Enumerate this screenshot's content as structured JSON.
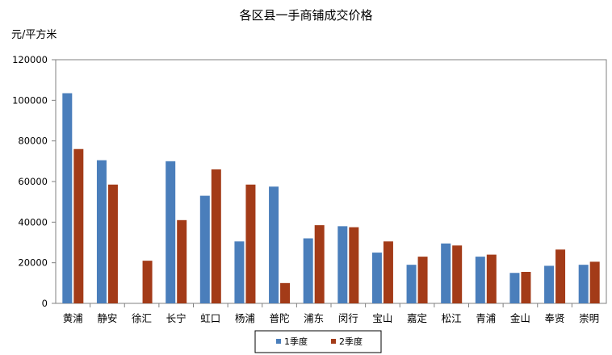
{
  "chart_data": {
    "type": "bar",
    "title": "各区县一手商铺成交价格",
    "ylabel": "元/平方米",
    "xlabel": "",
    "ylim": [
      0,
      120000
    ],
    "yticks": [
      0,
      20000,
      40000,
      60000,
      80000,
      100000,
      120000
    ],
    "grid": false,
    "legend_position": "bottom",
    "categories": [
      "黄浦",
      "静安",
      "徐汇",
      "长宁",
      "虹口",
      "杨浦",
      "普陀",
      "浦东",
      "闵行",
      "宝山",
      "嘉定",
      "松江",
      "青浦",
      "金山",
      "奉贤",
      "崇明"
    ],
    "series": [
      {
        "name": "1季度",
        "color": "#4a7ebb",
        "values": [
          103500,
          70500,
          0,
          70000,
          53000,
          30500,
          57500,
          32000,
          38000,
          25000,
          19000,
          29500,
          23000,
          15000,
          18500,
          19000
        ]
      },
      {
        "name": "2季度",
        "color": "#a33b18",
        "values": [
          76000,
          58500,
          21000,
          41000,
          66000,
          58500,
          10000,
          38500,
          37500,
          30500,
          23000,
          28500,
          24000,
          15500,
          26500,
          20500
        ]
      }
    ]
  }
}
